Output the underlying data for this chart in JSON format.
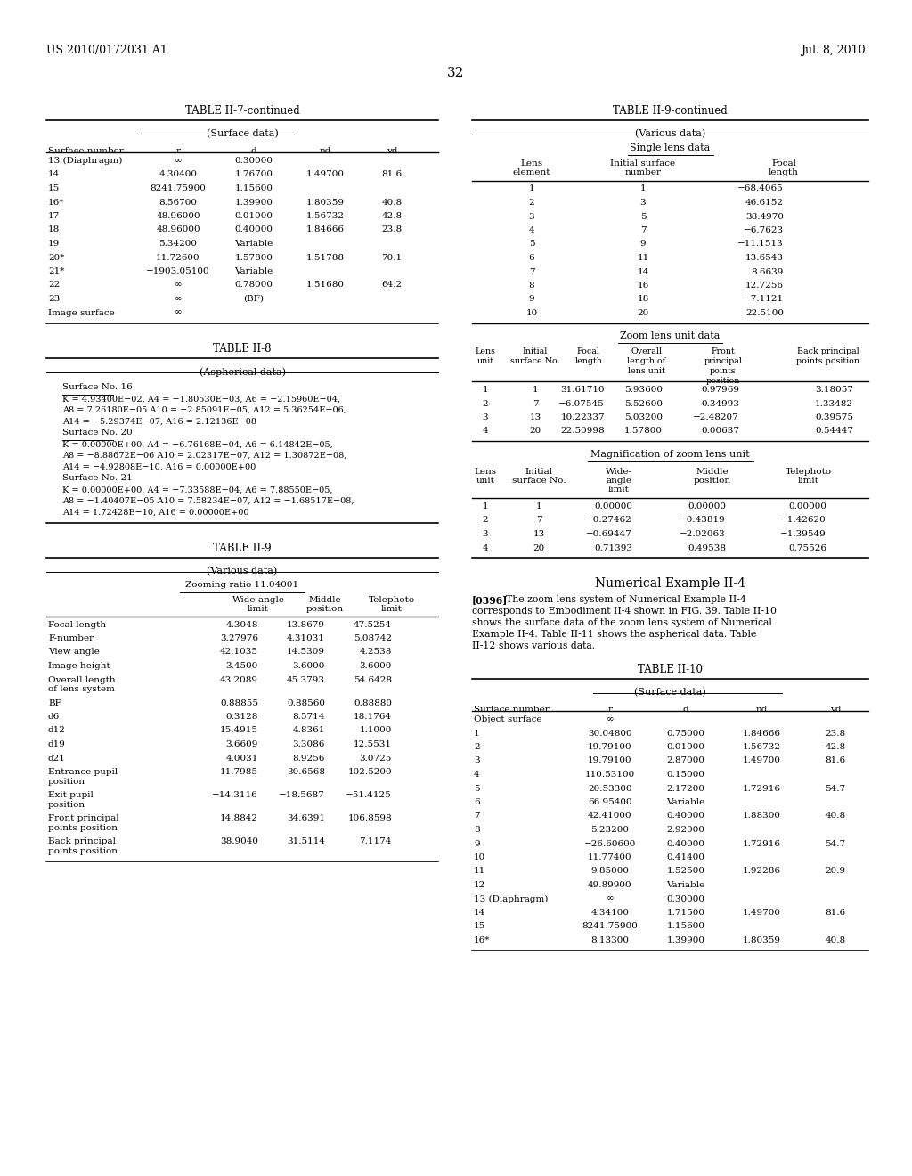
{
  "header_left": "US 2010/0172031 A1",
  "header_right": "Jul. 8, 2010",
  "page_number": "32",
  "background_color": "#ffffff",
  "table_ii7_title": "TABLE II-7-continued",
  "table_ii7_subtitle": "(Surface data)",
  "table_ii7_cols": [
    "Surface number",
    "r",
    "d",
    "nd",
    "vd"
  ],
  "table_ii7_rows": [
    [
      "13 (Diaphragm)",
      "∞",
      "0.30000",
      "",
      ""
    ],
    [
      "14",
      "4.30400",
      "1.76700",
      "1.49700",
      "81.6"
    ],
    [
      "15",
      "8241.75900",
      "1.15600",
      "",
      ""
    ],
    [
      "16*",
      "8.56700",
      "1.39900",
      "1.80359",
      "40.8"
    ],
    [
      "17",
      "48.96000",
      "0.01000",
      "1.56732",
      "42.8"
    ],
    [
      "18",
      "48.96000",
      "0.40000",
      "1.84666",
      "23.8"
    ],
    [
      "19",
      "5.34200",
      "Variable",
      "",
      ""
    ],
    [
      "20*",
      "11.72600",
      "1.57800",
      "1.51788",
      "70.1"
    ],
    [
      "21*",
      "−1903.05100",
      "Variable",
      "",
      ""
    ],
    [
      "22",
      "∞",
      "0.78000",
      "1.51680",
      "64.2"
    ],
    [
      "23",
      "∞",
      "(BF)",
      "",
      ""
    ],
    [
      "Image surface",
      "∞",
      "",
      "",
      ""
    ]
  ],
  "table_ii8_title": "TABLE II-8",
  "table_ii8_subtitle": "(Aspherical data)",
  "table_ii8_text": [
    [
      "header",
      "Surface No. 16"
    ],
    [
      "body",
      "K = 4.93400E−02, A4 = −1.80530E−03, A6 = −2.15960E−04,"
    ],
    [
      "body",
      "A8 = 7.26180E−05 A10 = −2.85091E−05, A12 = 5.36254E−06,"
    ],
    [
      "body",
      "A14 = −5.29374E−07, A16 = 2.12136E−08"
    ],
    [
      "header",
      "Surface No. 20"
    ],
    [
      "body",
      "K = 0.00000E+00, A4 = −6.76168E−04, A6 = 6.14842E−05,"
    ],
    [
      "body",
      "A8 = −8.88672E−06 A10 = 2.02317E−07, A12 = 1.30872E−08,"
    ],
    [
      "body",
      "A14 = −4.92808E−10, A16 = 0.00000E+00"
    ],
    [
      "header",
      "Surface No. 21"
    ],
    [
      "body",
      "K = 0.00000E+00, A4 = −7.33588E−04, A6 = 7.88550E−05,"
    ],
    [
      "body",
      "A8 = −1.40407E−05 A10 = 7.58234E−07, A12 = −1.68517E−08,"
    ],
    [
      "body",
      "A14 = 1.72428E−10, A16 = 0.00000E+00"
    ]
  ],
  "table_ii9_title": "TABLE II-9",
  "table_ii9_subtitle": "(Various data)",
  "table_ii9_zoom_label": "Zooming ratio 11.04001",
  "table_ii9_col1_headers": [
    "Wide-angle",
    "limit"
  ],
  "table_ii9_col2_headers": [
    "Middle",
    "position"
  ],
  "table_ii9_col3_headers": [
    "Telephoto",
    "limit"
  ],
  "table_ii9_rows": [
    [
      "Focal length",
      "",
      "4.3048",
      "13.8679",
      "47.5254"
    ],
    [
      "F-number",
      "",
      "3.27976",
      "4.31031",
      "5.08742"
    ],
    [
      "View angle",
      "",
      "42.1035",
      "14.5309",
      "4.2538"
    ],
    [
      "Image height",
      "",
      "3.4500",
      "3.6000",
      "3.6000"
    ],
    [
      "Overall length",
      "of lens system",
      "43.2089",
      "45.3793",
      "54.6428"
    ],
    [
      "BF",
      "",
      "0.88855",
      "0.88560",
      "0.88880"
    ],
    [
      "d6",
      "",
      "0.3128",
      "8.5714",
      "18.1764"
    ],
    [
      "d12",
      "",
      "15.4915",
      "4.8361",
      "1.1000"
    ],
    [
      "d19",
      "",
      "3.6609",
      "3.3086",
      "12.5531"
    ],
    [
      "d21",
      "",
      "4.0031",
      "8.9256",
      "3.0725"
    ],
    [
      "Entrance pupil",
      "position",
      "11.7985",
      "30.6568",
      "102.5200"
    ],
    [
      "Exit pupil",
      "position",
      "−14.3116",
      "−18.5687",
      "−51.4125"
    ],
    [
      "Front principal",
      "points position",
      "14.8842",
      "34.6391",
      "106.8598"
    ],
    [
      "Back principal",
      "points position",
      "38.9040",
      "31.5114",
      "7.1174"
    ]
  ],
  "table_ii9c_title": "TABLE II-9-continued",
  "table_ii9c_subtitle": "(Various data)",
  "table_ii9c_single_lens_label": "Single lens data",
  "table_ii9c_single_rows": [
    [
      "1",
      "1",
      "−68.4065"
    ],
    [
      "2",
      "3",
      "46.6152"
    ],
    [
      "3",
      "5",
      "38.4970"
    ],
    [
      "4",
      "7",
      "−6.7623"
    ],
    [
      "5",
      "9",
      "−11.1513"
    ],
    [
      "6",
      "11",
      "13.6543"
    ],
    [
      "7",
      "14",
      "8.6639"
    ],
    [
      "8",
      "16",
      "12.7256"
    ],
    [
      "9",
      "18",
      "−7.1121"
    ],
    [
      "10",
      "20",
      "22.5100"
    ]
  ],
  "table_ii9c_zoom_label": "Zoom lens unit data",
  "table_ii9c_zoom_rows": [
    [
      "1",
      "1",
      "31.61710",
      "5.93600",
      "0.97969",
      "3.18057"
    ],
    [
      "2",
      "7",
      "−6.07545",
      "5.52600",
      "0.34993",
      "1.33482"
    ],
    [
      "3",
      "13",
      "10.22337",
      "5.03200",
      "−2.48207",
      "0.39575"
    ],
    [
      "4",
      "20",
      "22.50998",
      "1.57800",
      "0.00637",
      "0.54447"
    ]
  ],
  "table_ii9c_mag_label": "Magnification of zoom lens unit",
  "table_ii9c_mag_rows": [
    [
      "1",
      "1",
      "0.00000",
      "0.00000",
      "0.00000"
    ],
    [
      "2",
      "7",
      "−0.27462",
      "−0.43819",
      "−1.42620"
    ],
    [
      "3",
      "13",
      "−0.69447",
      "−2.02063",
      "−1.39549"
    ],
    [
      "4",
      "20",
      "0.71393",
      "0.49538",
      "0.75526"
    ]
  ],
  "numerical_title": "Numerical Example II-4",
  "numerical_para": "[0396]   The zoom lens system of Numerical Example II-4 corresponds to Embodiment II-4 shown in FIG. 39. Table II-10 shows the surface data of the zoom lens system of Numerical Example II-4. Table II-11 shows the aspherical data. Table II-12 shows various data.",
  "table_ii10_title": "TABLE II-10",
  "table_ii10_subtitle": "(Surface data)",
  "table_ii10_cols": [
    "Surface number",
    "r",
    "d",
    "nd",
    "vd"
  ],
  "table_ii10_rows": [
    [
      "Object surface",
      "∞",
      "",
      "",
      ""
    ],
    [
      "1",
      "30.04800",
      "0.75000",
      "1.84666",
      "23.8"
    ],
    [
      "2",
      "19.79100",
      "0.01000",
      "1.56732",
      "42.8"
    ],
    [
      "3",
      "19.79100",
      "2.87000",
      "1.49700",
      "81.6"
    ],
    [
      "4",
      "110.53100",
      "0.15000",
      "",
      ""
    ],
    [
      "5",
      "20.53300",
      "2.17200",
      "1.72916",
      "54.7"
    ],
    [
      "6",
      "66.95400",
      "Variable",
      "",
      ""
    ],
    [
      "7",
      "42.41000",
      "0.40000",
      "1.88300",
      "40.8"
    ],
    [
      "8",
      "5.23200",
      "2.92000",
      "",
      ""
    ],
    [
      "9",
      "−26.60600",
      "0.40000",
      "1.72916",
      "54.7"
    ],
    [
      "10",
      "11.77400",
      "0.41400",
      "",
      ""
    ],
    [
      "11",
      "9.85000",
      "1.52500",
      "1.92286",
      "20.9"
    ],
    [
      "12",
      "49.89900",
      "Variable",
      "",
      ""
    ],
    [
      "13 (Diaphragm)",
      "∞",
      "0.30000",
      "",
      ""
    ],
    [
      "14",
      "4.34100",
      "1.71500",
      "1.49700",
      "81.6"
    ],
    [
      "15",
      "8241.75900",
      "1.15600",
      "",
      ""
    ],
    [
      "16*",
      "8.13300",
      "1.39900",
      "1.80359",
      "40.8"
    ]
  ]
}
